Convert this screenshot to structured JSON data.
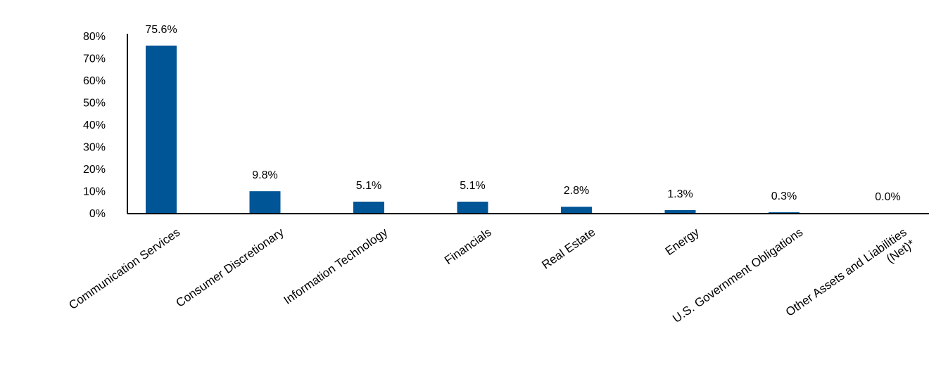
{
  "chart_data": {
    "type": "bar",
    "categories": [
      "Communication Services",
      "Consumer Discretionary",
      "Information Technology",
      "Financials",
      "Real Estate",
      "Energy",
      "U.S. Government Obligations",
      "Other Assets and Liabilities (Net)*"
    ],
    "category_lines": [
      [
        "Communication Services"
      ],
      [
        "Consumer Discretionary"
      ],
      [
        "Information Technology"
      ],
      [
        "Financials"
      ],
      [
        "Real Estate"
      ],
      [
        "Energy"
      ],
      [
        "U.S. Government Obligations"
      ],
      [
        "Other Assets and Liabilities",
        "(Net)*"
      ]
    ],
    "values": [
      75.6,
      9.8,
      5.1,
      5.1,
      2.8,
      1.3,
      0.3,
      0.0
    ],
    "data_labels": [
      "75.6%",
      "9.8%",
      "5.1%",
      "5.1%",
      "2.8%",
      "1.3%",
      "0.3%",
      "0.0%"
    ],
    "y_ticks": [
      0,
      10,
      20,
      30,
      40,
      50,
      60,
      70,
      80
    ],
    "y_tick_labels": [
      "0%",
      "10%",
      "20%",
      "30%",
      "40%",
      "50%",
      "60%",
      "70%",
      "80%"
    ],
    "ylim": [
      0,
      80
    ],
    "grid": false,
    "legend": "none",
    "bar_color": "#005596",
    "axis_color": "#000000",
    "title": "",
    "xlabel": "",
    "ylabel": ""
  }
}
